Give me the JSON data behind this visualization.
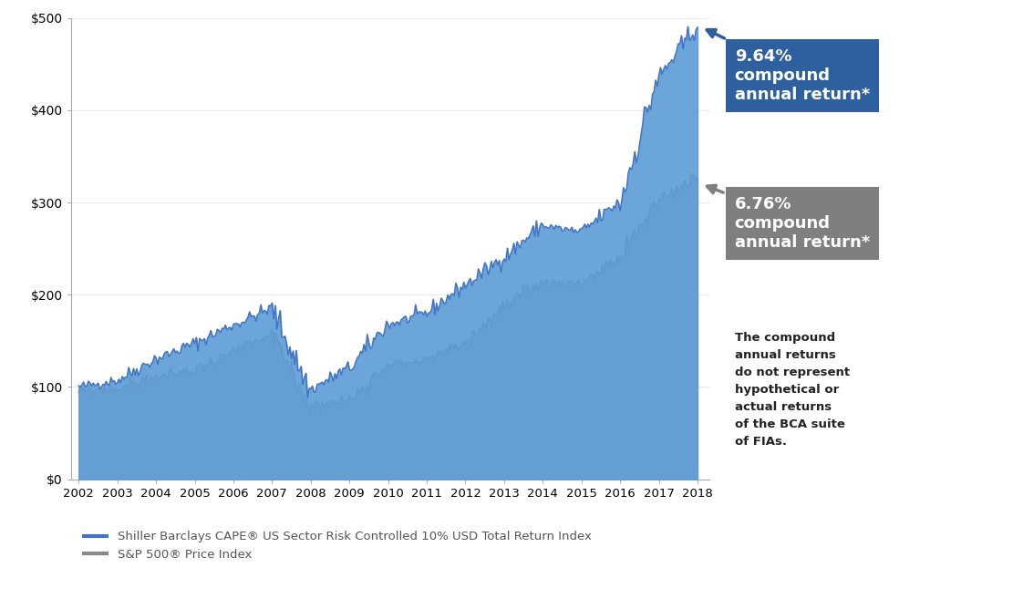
{
  "blue_label": "Shiller Barclays CAPE® US Sector Risk Controlled 10% USD Total Return Index",
  "gray_label": "S&P 500® Price Index",
  "blue_color": "#4472C4",
  "gray_color": "#888888",
  "blue_fill": "#5B9BD5",
  "gray_fill": "#C0C0C0",
  "annotation_blue_bg": "#2E5F9E",
  "annotation_gray_bg": "#7F7F7F",
  "ylim": [
    0,
    500
  ],
  "yticks": [
    0,
    100,
    200,
    300,
    400,
    500
  ],
  "blue_pct": "9.64%",
  "gray_pct": "6.76%",
  "blue_subtitle": "compound\nannual return*",
  "gray_subtitle": "compound\nannual return*",
  "note": "The compound\nannual returns\ndo not represent\nhypothetical or\nactual returns\nof the BCA suite\nof FIAs.",
  "x_years": [
    2002,
    2003,
    2004,
    2005,
    2006,
    2007,
    2008,
    2009,
    2010,
    2011,
    2012,
    2013,
    2014,
    2015,
    2016,
    2017,
    2018
  ],
  "blue_values": [
    100,
    107,
    130,
    147,
    167,
    185,
    97,
    120,
    167,
    180,
    210,
    240,
    275,
    268,
    300,
    435,
    490
  ],
  "gray_values": [
    95,
    98,
    110,
    118,
    137,
    155,
    80,
    85,
    125,
    128,
    148,
    185,
    213,
    213,
    237,
    303,
    325
  ]
}
